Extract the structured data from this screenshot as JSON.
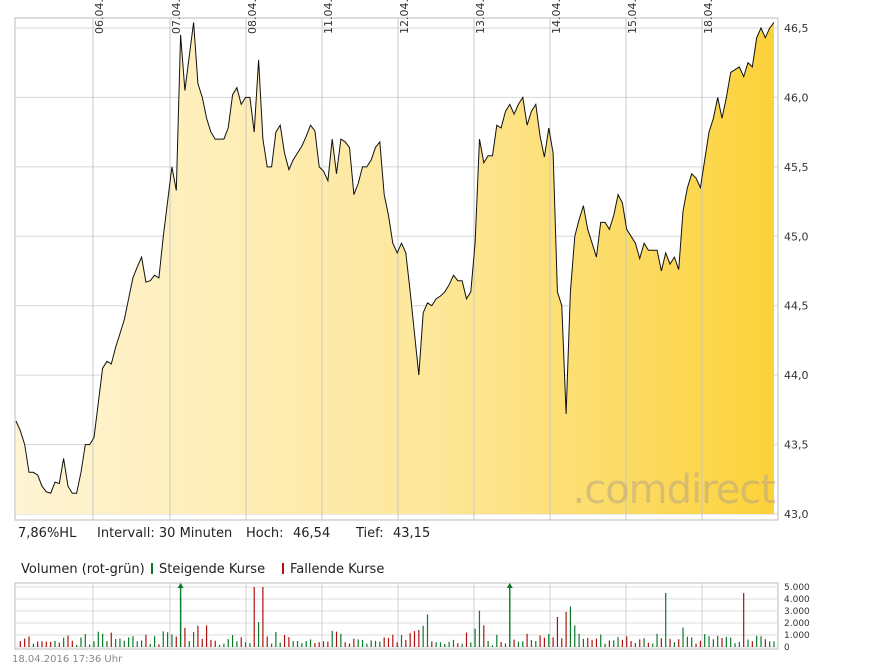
{
  "stats": {
    "range_label": "7,86%HL",
    "interval": "Intervall: 30 Minuten",
    "high_label": "Hoch:",
    "high_value": "46,54",
    "low_label": "Tief:",
    "low_value": "43,15"
  },
  "volume_legend": {
    "title": "Volumen (rot-grün)",
    "rising": "Steigende Kurse",
    "falling": "Fallende Kurse",
    "rising_color": "#0a7a2a",
    "falling_color": "#b01010"
  },
  "watermark": ".comdirect",
  "timestamp": "18.04.2016 17:36 Uhr",
  "chart_data": [
    {
      "type": "area",
      "date_labels": [
        "06.04.",
        "07.04.",
        "08.04.",
        "11.04.",
        "12.04.",
        "13.04.",
        "14.04.",
        "15.04.",
        "18.04."
      ],
      "y_ticks": [
        "43,0",
        "43,5",
        "44,0",
        "44,5",
        "45,0",
        "45,5",
        "46,0",
        "46,5"
      ],
      "y_tick_values": [
        43.0,
        43.5,
        44.0,
        44.5,
        45.0,
        45.5,
        46.0,
        46.5
      ],
      "ylim": [
        43.0,
        46.5
      ],
      "grid": true,
      "fill_color_start": "#fff4d4",
      "fill_color_end": "#fcd23a",
      "line_color": "#111111",
      "values": [
        43.67,
        43.6,
        43.5,
        43.3,
        43.3,
        43.28,
        43.2,
        43.16,
        43.15,
        43.23,
        43.22,
        43.4,
        43.2,
        43.15,
        43.15,
        43.3,
        43.5,
        43.5,
        43.55,
        43.8,
        44.05,
        44.1,
        44.08,
        44.2,
        44.3,
        44.4,
        44.55,
        44.7,
        44.78,
        44.85,
        44.67,
        44.68,
        44.72,
        44.7,
        45.0,
        45.25,
        45.5,
        45.33,
        46.45,
        46.05,
        46.3,
        46.54,
        46.1,
        46.0,
        45.85,
        45.75,
        45.7,
        45.7,
        45.7,
        45.78,
        46.02,
        46.07,
        45.95,
        46.0,
        46.0,
        45.75,
        46.27,
        45.7,
        45.5,
        45.5,
        45.75,
        45.8,
        45.6,
        45.48,
        45.55,
        45.6,
        45.65,
        45.72,
        45.8,
        45.76,
        45.5,
        45.47,
        45.4,
        45.7,
        45.45,
        45.7,
        45.68,
        45.64,
        45.3,
        45.38,
        45.5,
        45.5,
        45.55,
        45.64,
        45.68,
        45.3,
        45.15,
        44.95,
        44.88,
        44.95,
        44.88,
        44.6,
        44.3,
        44.0,
        44.45,
        44.52,
        44.5,
        44.55,
        44.57,
        44.6,
        44.65,
        44.72,
        44.68,
        44.68,
        44.55,
        44.6,
        44.95,
        45.7,
        45.53,
        45.58,
        45.58,
        45.8,
        45.78,
        45.9,
        45.95,
        45.88,
        45.95,
        46.0,
        45.8,
        45.9,
        45.95,
        45.72,
        45.57,
        45.78,
        45.6,
        44.6,
        44.5,
        43.72,
        44.6,
        45.0,
        45.12,
        45.22,
        45.05,
        44.95,
        44.85,
        45.1,
        45.1,
        45.05,
        45.15,
        45.3,
        45.24,
        45.05,
        45.0,
        44.95,
        44.84,
        44.95,
        44.9,
        44.9,
        44.9,
        44.75,
        44.88,
        44.8,
        44.85,
        44.76,
        45.18,
        45.35,
        45.45,
        45.42,
        45.35,
        45.55,
        45.75,
        45.85,
        46.0,
        45.85,
        46.0,
        46.18,
        46.2,
        46.22,
        46.15,
        46.25,
        46.22,
        46.43,
        46.5,
        46.43,
        46.5,
        46.54
      ]
    },
    {
      "type": "bar",
      "title": "Volumen (rot-grün)",
      "y_ticks": [
        "0",
        "1.000",
        "2.000",
        "3.000",
        "4.000",
        "5.000"
      ],
      "y_tick_values": [
        0,
        1000,
        2000,
        3000,
        4000,
        5000
      ],
      "ylim": [
        0,
        5000
      ],
      "grid": true,
      "overflow_markers": [
        38,
        114
      ]
    }
  ]
}
